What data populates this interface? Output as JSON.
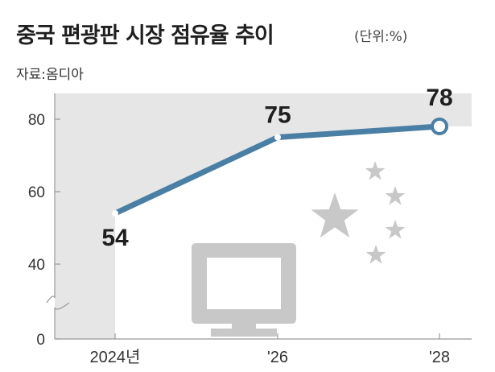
{
  "title": "중국 편광판 시장 점유율 추이",
  "unit": "(단위:%)",
  "source": "자료:옴디아",
  "colors": {
    "line": "#4a7fa5",
    "panel": "#e6e6e6",
    "decoration": "#c8c8c8",
    "axis": "#999999"
  },
  "chart_data": {
    "type": "line",
    "title": "중국 편광판 시장 점유율 추이",
    "unit": "(단위:%)",
    "x": [
      "2024년",
      "'26",
      "'28"
    ],
    "series": [
      {
        "values": [
          54,
          75,
          78
        ]
      }
    ],
    "data_labels": [
      "54",
      "75",
      "78"
    ],
    "y_ticks": [
      "0",
      "40",
      "60",
      "80"
    ],
    "y_axis_break": true,
    "grid": false,
    "legend": "none"
  }
}
